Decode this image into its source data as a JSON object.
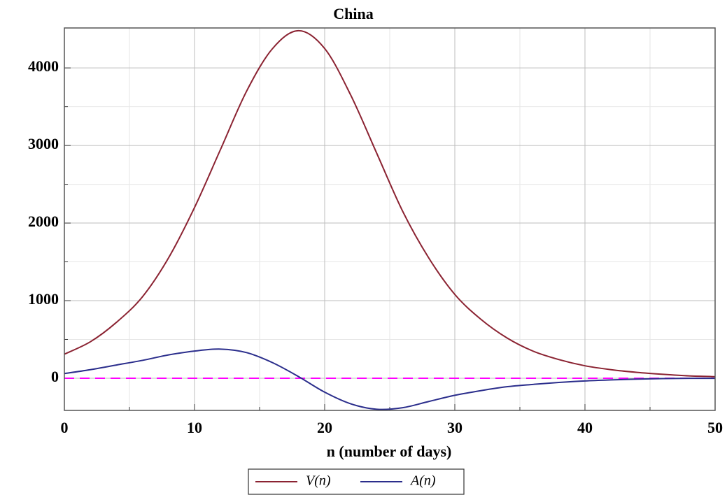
{
  "chart_data": {
    "type": "line",
    "title": "China",
    "x_label": "n (number of days)",
    "x": [
      0,
      2,
      4,
      6,
      8,
      10,
      12,
      14,
      16,
      18,
      20,
      22,
      24,
      26,
      28,
      30,
      32,
      34,
      36,
      38,
      40,
      42,
      44,
      46,
      48,
      50
    ],
    "series": [
      {
        "name": "V(n)",
        "color": "#8b2332",
        "values": [
          310,
          470,
          720,
          1050,
          1550,
          2200,
          2950,
          3700,
          4250,
          4480,
          4250,
          3650,
          2900,
          2150,
          1550,
          1080,
          760,
          520,
          350,
          240,
          160,
          110,
          75,
          50,
          30,
          20
        ]
      },
      {
        "name": "A(n)",
        "color": "#2b2e8c",
        "values": [
          60,
          110,
          170,
          230,
          300,
          350,
          375,
          330,
          200,
          20,
          -180,
          -330,
          -400,
          -380,
          -300,
          -220,
          -160,
          -110,
          -80,
          -55,
          -35,
          -22,
          -12,
          -5,
          -2,
          -1
        ]
      }
    ],
    "hline": {
      "value": 0,
      "color": "#ff00ff",
      "dashed": true
    },
    "xlim": [
      0,
      50
    ],
    "ylim": [
      -415,
      4515
    ],
    "xticks": [
      0,
      10,
      20,
      30,
      40,
      50
    ],
    "yticks": [
      0,
      1000,
      2000,
      3000,
      4000
    ],
    "xminorticks": [
      5,
      15,
      25,
      35,
      45
    ],
    "yminorticks": [
      500,
      1500,
      2500,
      3500
    ],
    "grid": true,
    "legend": "bottom"
  }
}
